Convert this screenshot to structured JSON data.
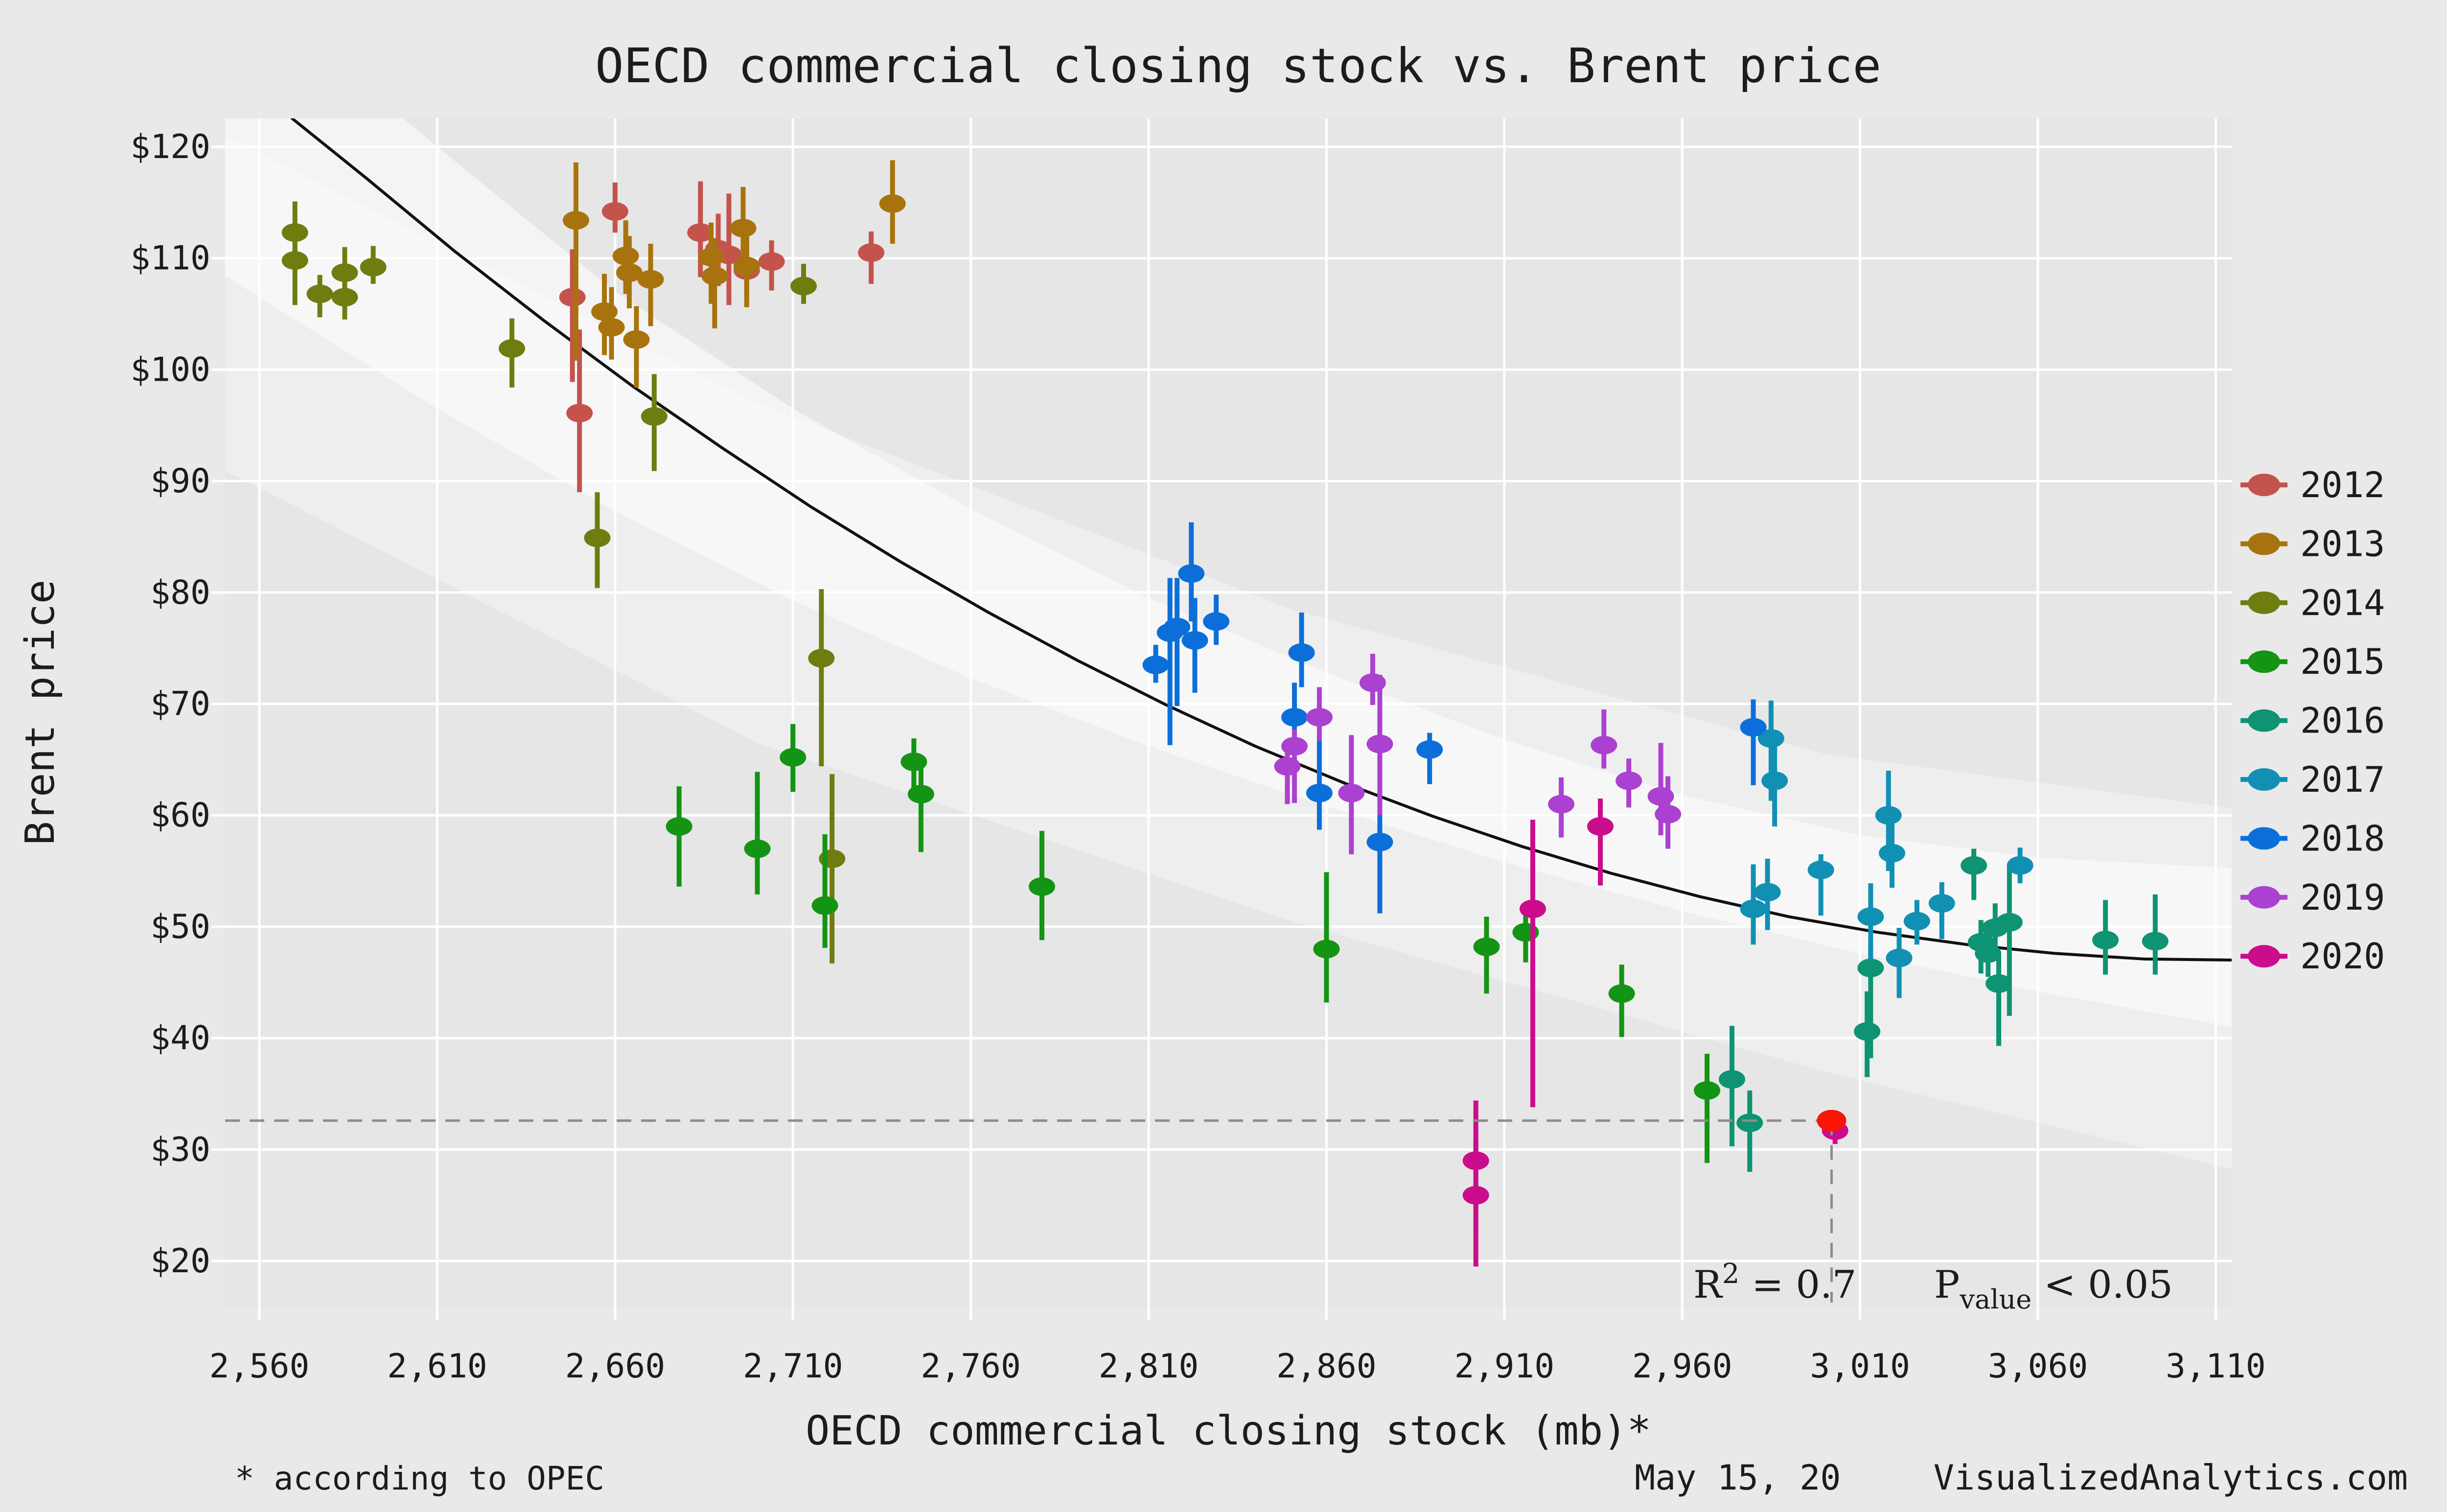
{
  "title": "OECD commercial closing stock vs. Brent price",
  "axes": {
    "x_label": "OECD commercial closing stock (mb)*",
    "y_label": "Brent price",
    "x_ticks": [
      {
        "v": 2560,
        "label": "2,560"
      },
      {
        "v": 2610,
        "label": "2,610"
      },
      {
        "v": 2660,
        "label": "2,660"
      },
      {
        "v": 2710,
        "label": "2,710"
      },
      {
        "v": 2760,
        "label": "2,760"
      },
      {
        "v": 2810,
        "label": "2,810"
      },
      {
        "v": 2860,
        "label": "2,860"
      },
      {
        "v": 2910,
        "label": "2,910"
      },
      {
        "v": 2960,
        "label": "2,960"
      },
      {
        "v": 3010,
        "label": "3,010"
      },
      {
        "v": 3060,
        "label": "3,060"
      },
      {
        "v": 3110,
        "label": "3,110"
      }
    ],
    "y_ticks": [
      {
        "v": 20,
        "label": "$20"
      },
      {
        "v": 30,
        "label": "$30"
      },
      {
        "v": 40,
        "label": "$40"
      },
      {
        "v": 50,
        "label": "$50"
      },
      {
        "v": 60,
        "label": "$60"
      },
      {
        "v": 70,
        "label": "$70"
      },
      {
        "v": 80,
        "label": "$80"
      },
      {
        "v": 90,
        "label": "$90"
      },
      {
        "v": 100,
        "label": "$100"
      },
      {
        "v": 110,
        "label": "$110"
      },
      {
        "v": 120,
        "label": "$120"
      }
    ]
  },
  "annotation": {
    "r2_base": "R",
    "r2_sup": "2",
    "r2_eq": " = 0.7",
    "p_base": "P",
    "p_sub": "value",
    "p_rest": " < 0.05"
  },
  "footer": {
    "note": "* according to OPEC",
    "date": "May 15, 20",
    "site": "VisualizedAnalytics.com"
  },
  "colors": {
    "background": "#e9e9e9",
    "panel": "#e6e6e6",
    "gridline": "#ffffff",
    "trend_line": "#111111",
    "band": "#ffffff",
    "dash": "#8c8c8c",
    "highlight": "#f81507"
  },
  "chart_data": {
    "type": "scatter",
    "x_domain_mb": [
      2550,
      3118
    ],
    "y_domain_usd": [
      15.9,
      122.6
    ],
    "grid": true,
    "legend_position": "right",
    "point_format": "[stock_mb, price_usd, price_low, price_high]",
    "series": [
      {
        "name": "2012",
        "color": "#c4534b",
        "points": [
          [
            2648,
            106.5,
            98.9,
            110.8
          ],
          [
            2650,
            96.1,
            89.0,
            103.6
          ],
          [
            2660,
            114.2,
            112.3,
            116.8
          ],
          [
            2684,
            112.3,
            108.3,
            116.9
          ],
          [
            2689,
            110.8,
            107.5,
            114.0
          ],
          [
            2692,
            110.3,
            105.8,
            115.8
          ],
          [
            2697,
            108.9,
            106.0,
            112.0
          ],
          [
            2704,
            109.7,
            107.1,
            111.6
          ],
          [
            2732,
            110.5,
            107.7,
            112.4
          ]
        ]
      },
      {
        "name": "2013",
        "color": "#a8730f",
        "points": [
          [
            2649,
            113.4,
            100.8,
            118.6
          ],
          [
            2657,
            105.2,
            101.3,
            108.6
          ],
          [
            2659,
            103.8,
            100.9,
            107.4
          ],
          [
            2663,
            110.2,
            106.8,
            113.4
          ],
          [
            2664,
            108.7,
            105.5,
            112.0
          ],
          [
            2666,
            102.7,
            98.4,
            105.7
          ],
          [
            2670,
            108.1,
            103.9,
            111.3
          ],
          [
            2687,
            110.1,
            105.9,
            113.2
          ],
          [
            2688,
            108.4,
            103.7,
            111.8
          ],
          [
            2696,
            112.7,
            108.4,
            116.4
          ],
          [
            2697,
            109.3,
            105.6,
            112.6
          ],
          [
            2738,
            114.9,
            111.3,
            118.8
          ]
        ]
      },
      {
        "name": "2014",
        "color": "#6f7d10",
        "points": [
          [
            2570,
            112.3,
            109.0,
            115.1
          ],
          [
            2570,
            109.8,
            105.8,
            113.0
          ],
          [
            2577,
            106.8,
            104.7,
            108.5
          ],
          [
            2584,
            108.7,
            105.9,
            111.0
          ],
          [
            2584,
            106.5,
            104.5,
            108.0
          ],
          [
            2592,
            109.2,
            107.7,
            111.1
          ],
          [
            2631,
            101.9,
            98.4,
            104.6
          ],
          [
            2655,
            84.9,
            80.4,
            89.0
          ],
          [
            2671,
            95.8,
            90.9,
            99.6
          ],
          [
            2713,
            107.5,
            105.9,
            109.5
          ],
          [
            2718,
            74.1,
            64.4,
            80.3
          ],
          [
            2721,
            56.1,
            46.7,
            63.7
          ]
        ]
      },
      {
        "name": "2015",
        "color": "#149414",
        "points": [
          [
            2678,
            59.0,
            53.6,
            62.6
          ],
          [
            2700,
            57.0,
            52.9,
            63.9
          ],
          [
            2710,
            65.2,
            62.1,
            68.2
          ],
          [
            2719,
            51.9,
            48.1,
            58.3
          ],
          [
            2744,
            64.8,
            61.5,
            66.9
          ],
          [
            2746,
            61.9,
            56.7,
            65.2
          ],
          [
            2780,
            53.6,
            48.8,
            58.6
          ],
          [
            2860,
            48.0,
            43.2,
            54.9
          ],
          [
            2905,
            48.2,
            44.0,
            50.9
          ],
          [
            2916,
            49.5,
            46.8,
            52.0
          ],
          [
            2943,
            44.0,
            40.1,
            46.6
          ],
          [
            2967,
            35.3,
            28.8,
            38.6
          ]
        ]
      },
      {
        "name": "2016",
        "color": "#0e9373",
        "points": [
          [
            2974,
            36.3,
            30.3,
            41.1
          ],
          [
            2979,
            32.4,
            28.0,
            35.3
          ],
          [
            3012,
            40.6,
            36.5,
            44.2
          ],
          [
            3013,
            46.3,
            38.2,
            48.5
          ],
          [
            3042,
            55.5,
            52.4,
            57.0
          ],
          [
            3044,
            48.6,
            45.8,
            50.6
          ],
          [
            3046,
            47.6,
            45.5,
            49.5
          ],
          [
            3048,
            49.9,
            47.0,
            52.1
          ],
          [
            3049,
            44.9,
            39.3,
            47.4
          ],
          [
            3052,
            50.4,
            42.0,
            55.6
          ],
          [
            3079,
            48.8,
            45.7,
            52.4
          ],
          [
            3093,
            48.7,
            45.7,
            52.9
          ]
        ]
      },
      {
        "name": "2017",
        "color": "#1190b4",
        "points": [
          [
            2980,
            51.6,
            48.4,
            55.6
          ],
          [
            2984,
            53.1,
            49.7,
            56.1
          ],
          [
            2985,
            66.9,
            61.3,
            70.3
          ],
          [
            2986,
            63.1,
            59.0,
            66.5
          ],
          [
            2999,
            55.1,
            51.0,
            56.5
          ],
          [
            3013,
            50.9,
            47.0,
            53.9
          ],
          [
            3018,
            60.0,
            55.0,
            64.0
          ],
          [
            3019,
            56.6,
            53.5,
            59.5
          ],
          [
            3021,
            47.2,
            43.6,
            49.9
          ],
          [
            3026,
            50.5,
            48.4,
            52.4
          ],
          [
            3033,
            52.1,
            48.9,
            54.0
          ],
          [
            3055,
            55.5,
            53.9,
            57.1
          ]
        ]
      },
      {
        "name": "2018",
        "color": "#0c6fd9",
        "points": [
          [
            2812,
            73.5,
            71.9,
            75.3
          ],
          [
            2816,
            76.4,
            66.3,
            81.3
          ],
          [
            2818,
            76.9,
            69.8,
            81.3
          ],
          [
            2822,
            81.7,
            77.4,
            86.3
          ],
          [
            2823,
            75.7,
            71.0,
            79.5
          ],
          [
            2829,
            77.4,
            75.3,
            79.8
          ],
          [
            2851,
            68.8,
            66.2,
            71.9
          ],
          [
            2853,
            74.6,
            71.5,
            78.2
          ],
          [
            2858,
            62.0,
            58.7,
            66.7
          ],
          [
            2875,
            57.6,
            51.2,
            60.1
          ],
          [
            2889,
            65.9,
            62.8,
            67.4
          ],
          [
            2980,
            67.9,
            62.7,
            70.4
          ]
        ]
      },
      {
        "name": "2019",
        "color": "#ab41d0",
        "points": [
          [
            2849,
            64.4,
            61.0,
            66.6
          ],
          [
            2851,
            66.2,
            61.1,
            67.7
          ],
          [
            2858,
            68.8,
            66.7,
            71.5
          ],
          [
            2867,
            62.0,
            56.5,
            67.2
          ],
          [
            2873,
            71.9,
            69.9,
            74.5
          ],
          [
            2875,
            66.4,
            60.0,
            72.6
          ],
          [
            2926,
            61.0,
            58.0,
            63.4
          ],
          [
            2938,
            66.3,
            64.2,
            69.5
          ],
          [
            2945,
            63.1,
            60.7,
            65.1
          ],
          [
            2954,
            61.7,
            58.2,
            66.5
          ],
          [
            2956,
            60.1,
            57.0,
            63.5
          ]
        ]
      },
      {
        "name": "2020",
        "color": "#cb0c8c",
        "points": [
          [
            2902,
            29.0,
            19.5,
            34.4
          ],
          [
            2902,
            25.9,
            22.8,
            30.8
          ],
          [
            2918,
            51.6,
            33.8,
            59.6
          ],
          [
            2937,
            59.0,
            53.7,
            61.5
          ],
          [
            3003,
            31.7,
            30.5,
            33.0
          ]
        ]
      }
    ],
    "highlight_point": {
      "x": 3002,
      "y": 32.6
    },
    "trend": {
      "curve": [
        [
          2569,
          122.6
        ],
        [
          2590,
          117.2
        ],
        [
          2615,
          110.6
        ],
        [
          2640,
          104.4
        ],
        [
          2665,
          98.5
        ],
        [
          2690,
          93.0
        ],
        [
          2715,
          87.7
        ],
        [
          2740,
          82.8
        ],
        [
          2765,
          78.2
        ],
        [
          2790,
          73.9
        ],
        [
          2815,
          69.9
        ],
        [
          2840,
          66.2
        ],
        [
          2865,
          62.9
        ],
        [
          2890,
          59.9
        ],
        [
          2915,
          57.2
        ],
        [
          2940,
          54.8
        ],
        [
          2965,
          52.7
        ],
        [
          2990,
          50.9
        ],
        [
          3015,
          49.5
        ],
        [
          3040,
          48.4
        ],
        [
          3065,
          47.6
        ],
        [
          3090,
          47.1
        ],
        [
          3117,
          47.0
        ]
      ],
      "band_inner": {
        "upper": [
          [
            2550,
            136
          ],
          [
            2610,
            120
          ],
          [
            2660,
            107
          ],
          [
            2710,
            96.5
          ],
          [
            2760,
            87.5
          ],
          [
            2810,
            79.5
          ],
          [
            2860,
            72.8
          ],
          [
            2910,
            66.8
          ],
          [
            2960,
            61.8
          ],
          [
            3010,
            58.2
          ],
          [
            3060,
            56.2
          ],
          [
            3118,
            55.2
          ]
        ],
        "lower": [
          [
            2550,
            108.5
          ],
          [
            2610,
            96.5
          ],
          [
            2660,
            87.3
          ],
          [
            2710,
            79.3
          ],
          [
            2760,
            72.3
          ],
          [
            2810,
            66.2
          ],
          [
            2860,
            60.8
          ],
          [
            2910,
            55.8
          ],
          [
            2960,
            51.4
          ],
          [
            3010,
            47.6
          ],
          [
            3060,
            44.2
          ],
          [
            3118,
            40.8
          ]
        ]
      },
      "band_outer": {
        "upper": [
          [
            2550,
            121
          ],
          [
            2700,
            97
          ],
          [
            2850,
            78.5
          ],
          [
            3000,
            65.5
          ],
          [
            3118,
            60.5
          ]
        ],
        "lower": [
          [
            2550,
            91
          ],
          [
            2700,
            66.5
          ],
          [
            2850,
            50.5
          ],
          [
            3000,
            37
          ],
          [
            3118,
            28
          ]
        ]
      }
    }
  }
}
